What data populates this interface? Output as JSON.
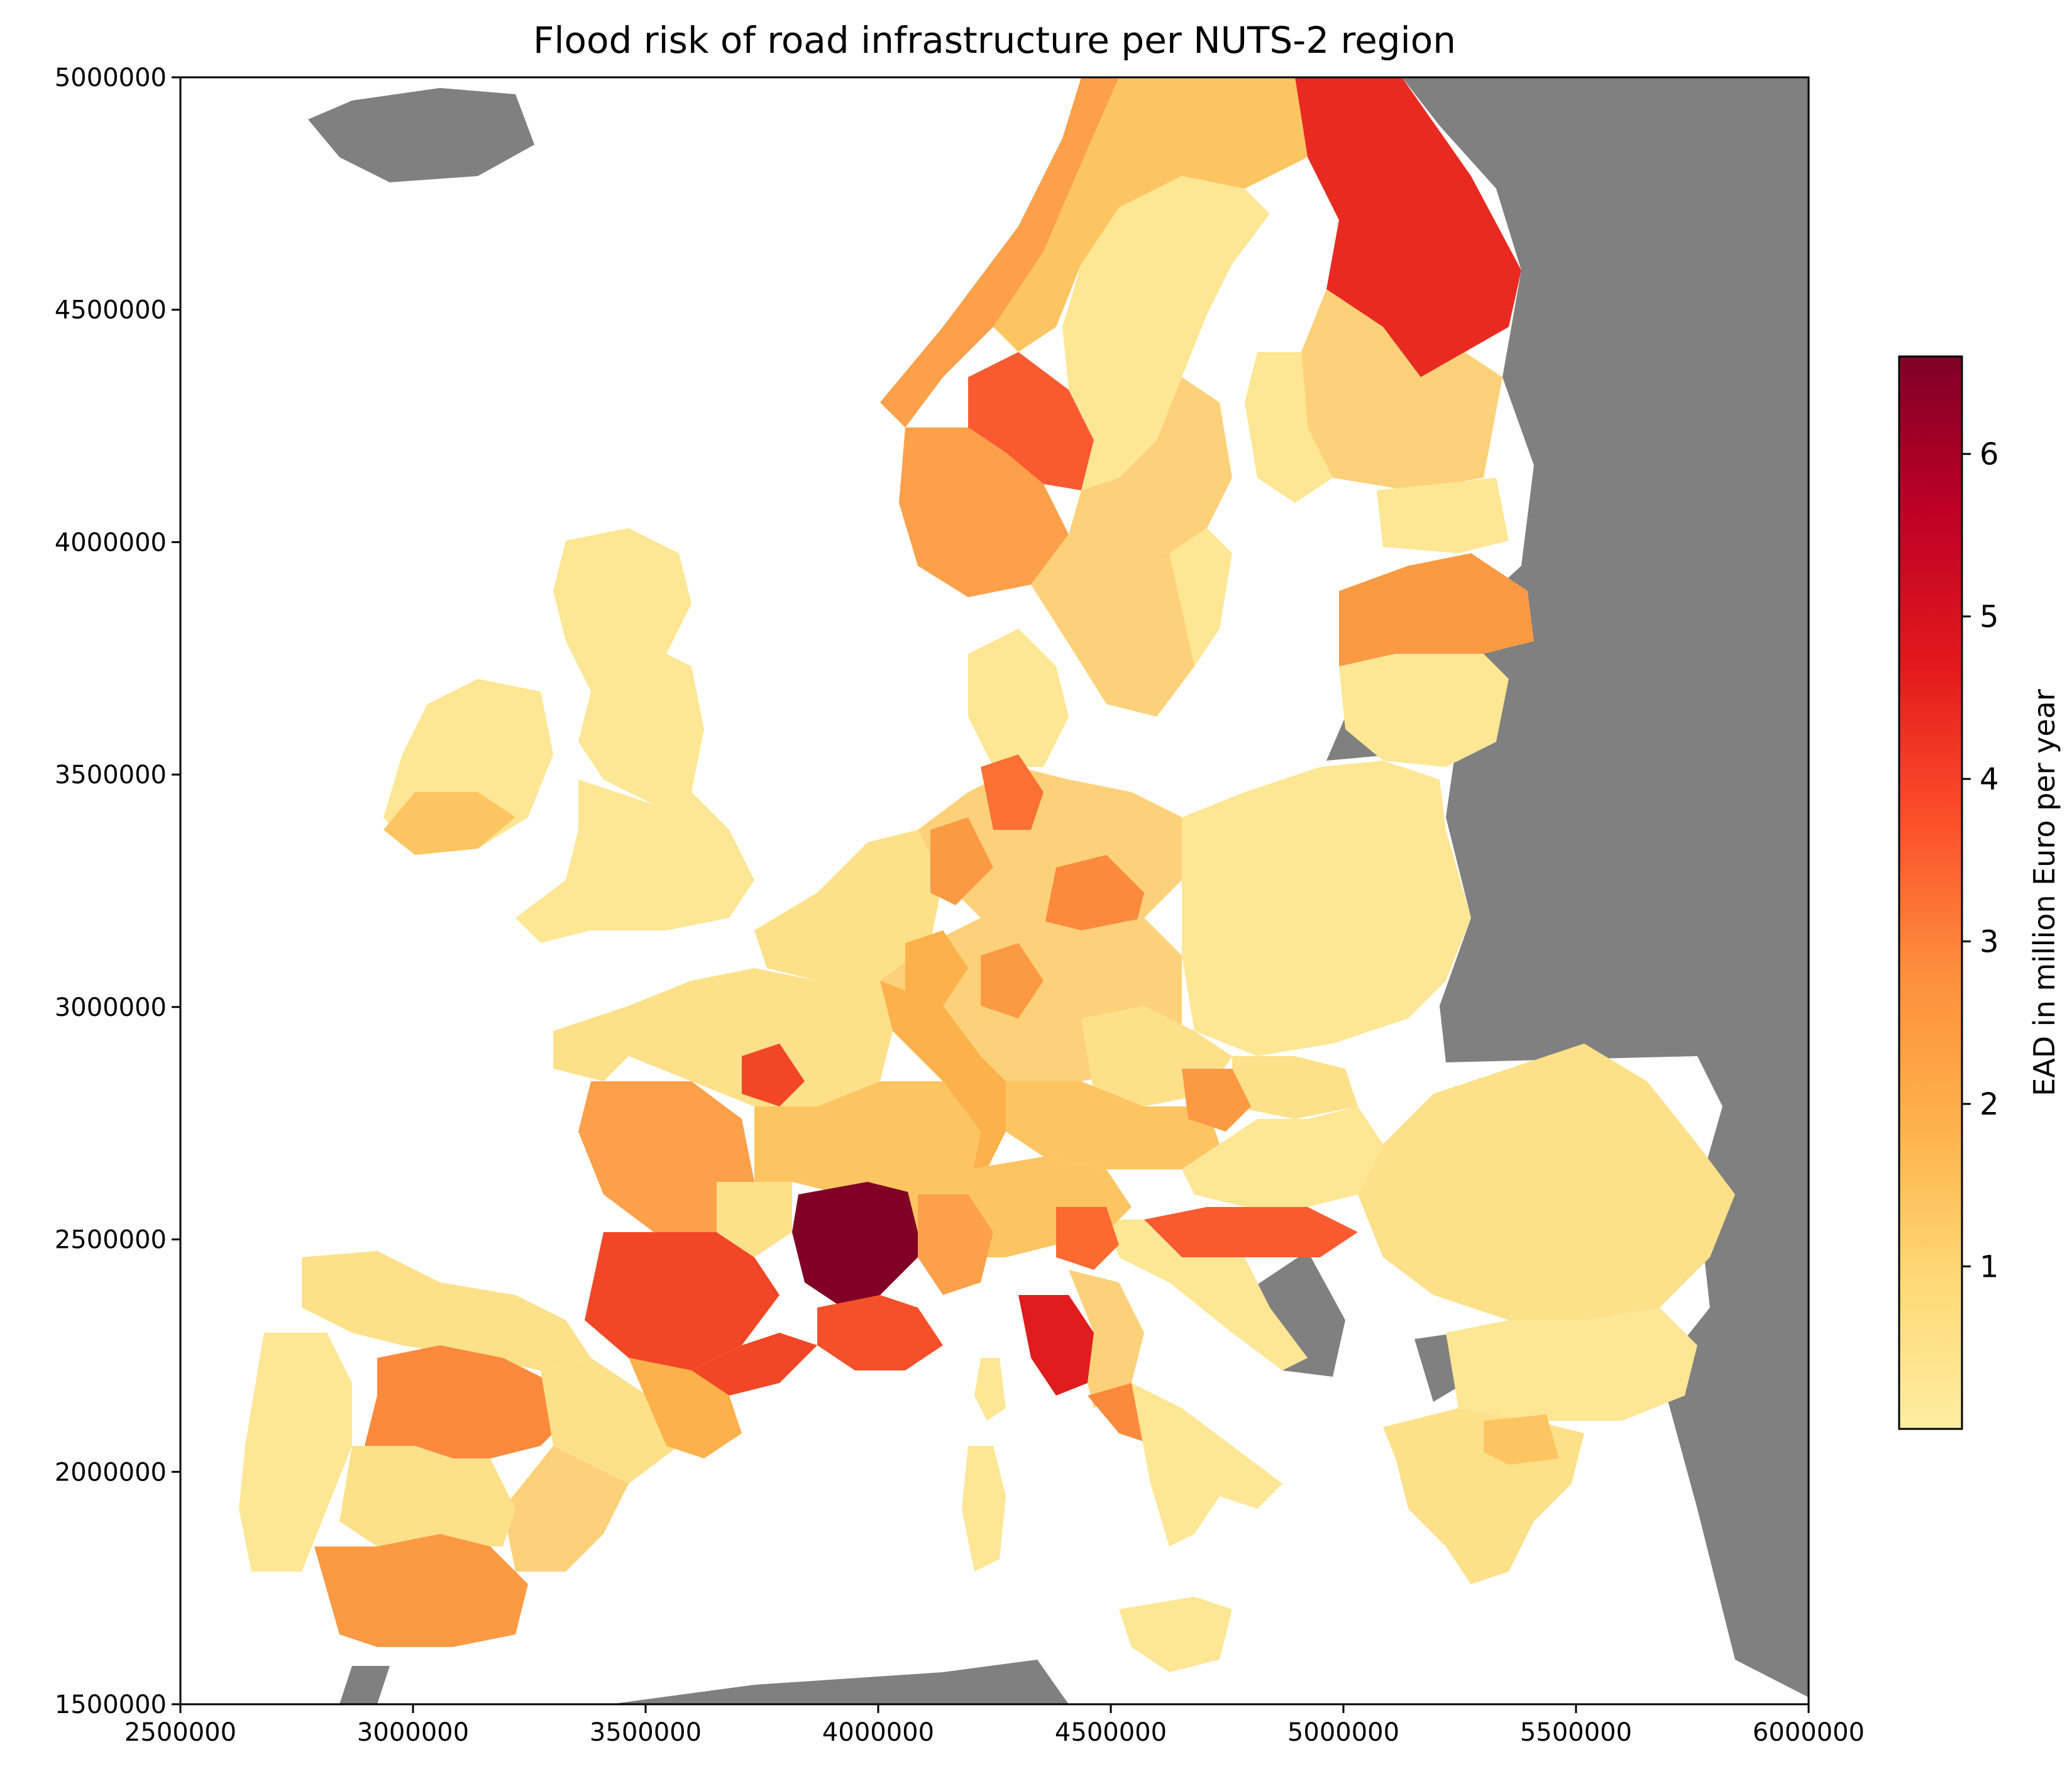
{
  "title": "Flood risk of road infrastructure per NUTS-2 region",
  "colorbar": {
    "label": "EAD in million Euro per year",
    "ticks": [
      "1",
      "2",
      "3",
      "4",
      "5",
      "6"
    ],
    "tick_values": [
      1,
      2,
      3,
      4,
      5,
      6
    ],
    "min": 0.0,
    "max": 6.6,
    "colormap": "YlOrRd",
    "colors": [
      "#ffeda0",
      "#fed976",
      "#feb24c",
      "#fd8d3c",
      "#fc4e2a",
      "#e31a1c",
      "#bd0026",
      "#800026"
    ]
  },
  "map": {
    "background_land_color": "#808080",
    "sea_color": "#ffffff",
    "x_ticks": [
      "2500000",
      "3000000",
      "3500000",
      "4000000",
      "4500000",
      "5000000",
      "5500000",
      "6000000"
    ],
    "y_ticks": [
      "5000000",
      "4500000",
      "4000000",
      "3500000",
      "3000000",
      "2500000",
      "2000000",
      "1500000"
    ],
    "xlim": [
      2500000,
      6000000
    ],
    "ylim": [
      1500000,
      5000000
    ]
  },
  "chart_data": {
    "type": "choropleth",
    "title": "Flood risk of road infrastructure per NUTS-2 region",
    "units": "EAD in million Euro per year",
    "xlim": [
      2500000,
      6000000
    ],
    "ylim": [
      1500000,
      5000000
    ],
    "value_range": [
      0,
      6.6
    ]
  }
}
